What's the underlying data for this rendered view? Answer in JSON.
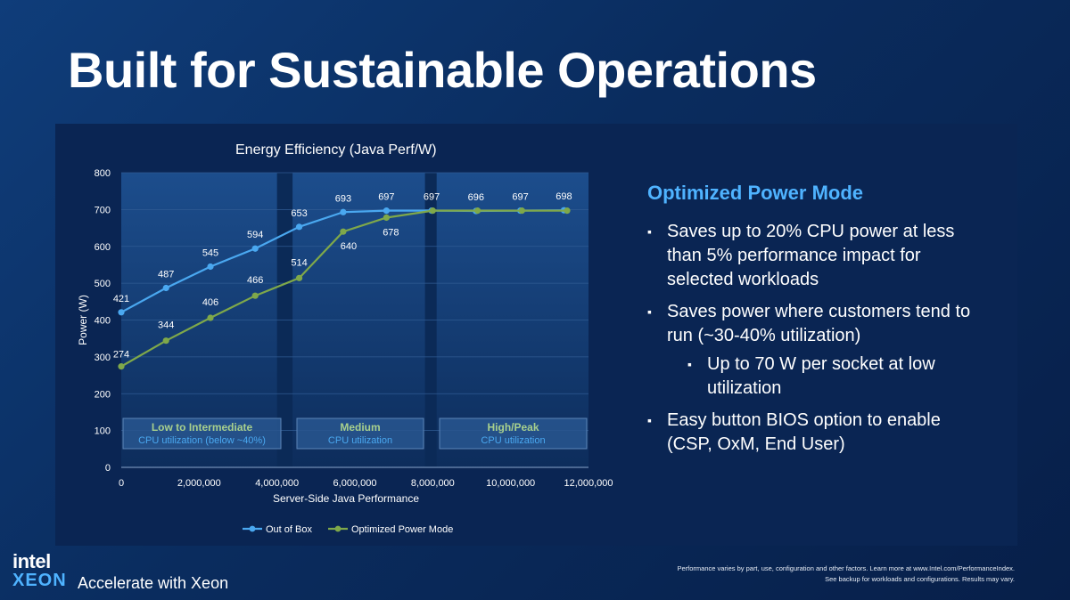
{
  "slide": {
    "title": "Built for Sustainable Operations",
    "logo_text": "intel",
    "logo_subtext": "XEON",
    "tagline": "Accelerate with Xeon",
    "footnote_line1": "Performance varies by part, use, configuration and other factors. Learn more at www.Intel.com/PerformanceIndex.",
    "footnote_line2": "See backup for workloads and configurations. Results may vary."
  },
  "side": {
    "heading": "Optimized Power Mode",
    "bullets": [
      "Saves up to 20% CPU power at less than 5% performance impact for selected workloads",
      "Saves power where customers tend to run (~30-40% utilization)",
      "Up to 70 W per socket at low utilization",
      "Easy button BIOS option to enable (CSP, OxM, End User)"
    ]
  },
  "colors": {
    "series_out_of_box": "#4aa8f0",
    "series_optimized": "#7fa84a",
    "region_label": "#a8d08d",
    "region_sublabel": "#4aa8f0"
  },
  "chart_data": {
    "type": "line",
    "title": "Energy Efficiency (Java Perf/W)",
    "xlabel": "Server-Side Java Performance",
    "ylabel": "Power (W)",
    "xlim": [
      0,
      12000000
    ],
    "ylim": [
      0,
      800
    ],
    "x_ticks": [
      0,
      2000000,
      4000000,
      6000000,
      8000000,
      10000000,
      12000000
    ],
    "x_tick_labels": [
      "0",
      "2,000,000",
      "4,000,000",
      "6,000,000",
      "8,000,000",
      "10,000,000",
      "12,000,000"
    ],
    "y_ticks": [
      0,
      100,
      200,
      300,
      400,
      500,
      600,
      700,
      800
    ],
    "y_tick_labels": [
      "0",
      "100",
      "200",
      "300",
      "400",
      "500",
      "600",
      "700",
      "800"
    ],
    "legend_position": "bottom",
    "series": [
      {
        "name": "Out of Box",
        "x": [
          0,
          1150000,
          2290000,
          3440000,
          4570000,
          5700000,
          6810000,
          7970000,
          9110000,
          10250000,
          11370000
        ],
        "values": [
          421,
          487,
          545,
          594,
          653,
          693,
          697,
          697,
          696,
          697,
          698
        ]
      },
      {
        "name": "Optimized Power Mode",
        "x": [
          0,
          1150000,
          2290000,
          3440000,
          4570000,
          5700000,
          6810000,
          8000000,
          9150000,
          10290000,
          11450000
        ],
        "values": [
          274,
          344,
          406,
          466,
          514,
          640,
          678,
          697,
          697,
          697,
          697
        ]
      }
    ],
    "data_labels": [
      {
        "text": "421"
      },
      {
        "text": "487"
      },
      {
        "text": "545"
      },
      {
        "text": "594"
      },
      {
        "text": "653"
      },
      {
        "text": "693"
      },
      {
        "text": "697"
      },
      {
        "text": "697"
      },
      {
        "text": "696"
      },
      {
        "text": "697"
      },
      {
        "text": "698"
      },
      {
        "text": "274"
      },
      {
        "text": "344"
      },
      {
        "text": "406"
      },
      {
        "text": "466"
      },
      {
        "text": "514"
      },
      {
        "text": "640"
      },
      {
        "text": "678"
      }
    ],
    "regions": [
      {
        "label": "Low to Intermediate",
        "sublabel": "CPU utilization (below ~40%)",
        "x_start": 0,
        "x_end": 4000000
      },
      {
        "label": "Medium",
        "sublabel": "CPU utilization",
        "x_start": 4400000,
        "x_end": 7800000
      },
      {
        "label": "High/Peak",
        "sublabel": "CPU utilization",
        "x_start": 8100000,
        "x_end": 12000000
      }
    ]
  }
}
